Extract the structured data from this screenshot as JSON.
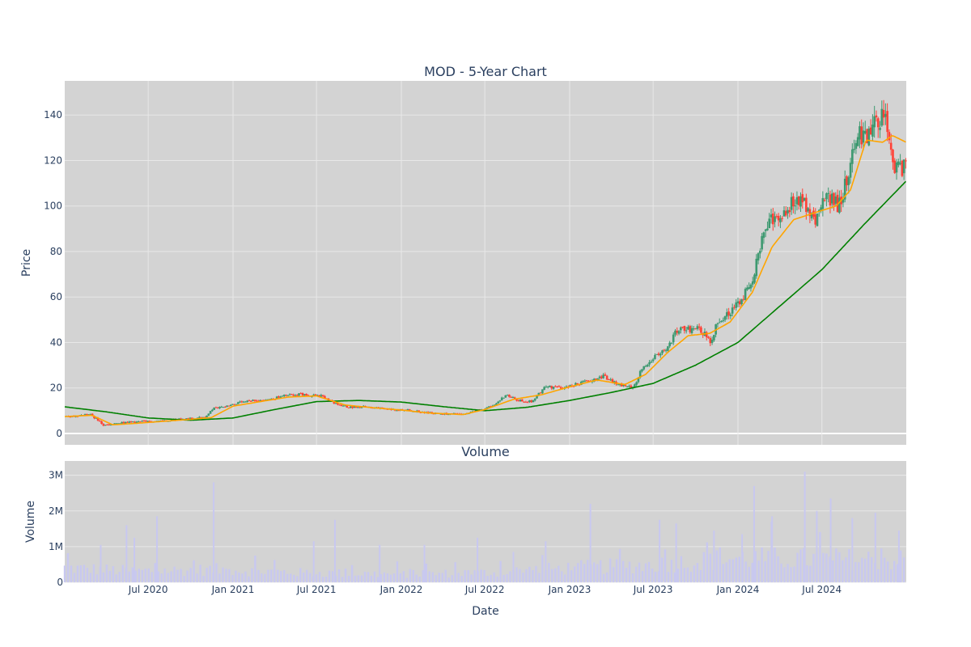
{
  "chart_data": [
    {
      "type": "candlestick",
      "title": "MOD - 5-Year Chart",
      "xlabel": "",
      "ylabel": "Price",
      "ylim": [
        -5,
        155
      ],
      "yticks": [
        0,
        20,
        40,
        60,
        80,
        100,
        120,
        140
      ],
      "xlim": [
        "2020-01-02",
        "2024-12-31"
      ],
      "background": "#d3d3d3",
      "grid": true,
      "colors": {
        "increasing": "#3d9970",
        "decreasing": "#ff4136",
        "ma_short": "#ffa500",
        "ma_long": "#008000"
      },
      "price_close": [
        [
          "2020-01-02",
          7.5
        ],
        [
          "2020-02-01",
          7.6
        ],
        [
          "2020-02-25",
          8.5
        ],
        [
          "2020-03-10",
          6.5
        ],
        [
          "2020-03-25",
          3.5
        ],
        [
          "2020-04-15",
          4.0
        ],
        [
          "2020-05-10",
          4.8
        ],
        [
          "2020-06-05",
          5.0
        ],
        [
          "2020-07-01",
          5.3
        ],
        [
          "2020-08-01",
          5.6
        ],
        [
          "2020-09-01",
          6.2
        ],
        [
          "2020-10-01",
          6.6
        ],
        [
          "2020-11-01",
          7.2
        ],
        [
          "2020-11-20",
          11.0
        ],
        [
          "2020-12-15",
          12.0
        ],
        [
          "2021-01-15",
          13.5
        ],
        [
          "2021-02-20",
          14.5
        ],
        [
          "2021-03-20",
          14.8
        ],
        [
          "2021-04-20",
          16.5
        ],
        [
          "2021-05-20",
          17.2
        ],
        [
          "2021-06-15",
          17.0
        ],
        [
          "2021-07-10",
          16.5
        ],
        [
          "2021-08-10",
          13.0
        ],
        [
          "2021-09-10",
          11.5
        ],
        [
          "2021-10-15",
          11.8
        ],
        [
          "2021-11-15",
          11.0
        ],
        [
          "2021-12-15",
          10.5
        ],
        [
          "2022-01-20",
          10.2
        ],
        [
          "2022-03-01",
          9.0
        ],
        [
          "2022-04-15",
          8.5
        ],
        [
          "2022-05-20",
          8.4
        ],
        [
          "2022-06-20",
          10.5
        ],
        [
          "2022-07-20",
          12.0
        ],
        [
          "2022-08-15",
          17.0
        ],
        [
          "2022-09-10",
          14.5
        ],
        [
          "2022-10-10",
          14.0
        ],
        [
          "2022-11-10",
          20.5
        ],
        [
          "2022-12-15",
          20.0
        ],
        [
          "2023-01-15",
          21.5
        ],
        [
          "2023-02-15",
          23.5
        ],
        [
          "2023-03-15",
          25.0
        ],
        [
          "2023-04-15",
          21.5
        ],
        [
          "2023-05-20",
          20.5
        ],
        [
          "2023-06-10",
          30.0
        ],
        [
          "2023-07-10",
          34.0
        ],
        [
          "2023-08-01",
          37.0
        ],
        [
          "2023-08-20",
          45.0
        ],
        [
          "2023-09-15",
          46.0
        ],
        [
          "2023-10-10",
          46.5
        ],
        [
          "2023-11-01",
          40.0
        ],
        [
          "2023-11-20",
          50.0
        ],
        [
          "2023-12-10",
          53.0
        ],
        [
          "2024-01-05",
          58.0
        ],
        [
          "2024-02-01",
          68.0
        ],
        [
          "2024-03-01",
          90.0
        ],
        [
          "2024-03-20",
          95.0
        ],
        [
          "2024-04-10",
          98.0
        ],
        [
          "2024-05-01",
          103.0
        ],
        [
          "2024-05-25",
          100.0
        ],
        [
          "2024-06-20",
          94.0
        ],
        [
          "2024-07-10",
          105.0
        ],
        [
          "2024-08-05",
          100.0
        ],
        [
          "2024-08-25",
          112.0
        ],
        [
          "2024-09-15",
          132.0
        ],
        [
          "2024-10-05",
          130.0
        ],
        [
          "2024-10-25",
          137.0
        ],
        [
          "2024-11-15",
          140.0
        ],
        [
          "2024-12-05",
          115.0
        ],
        [
          "2024-12-31",
          117.0
        ]
      ],
      "ma_short": [
        [
          "2020-01-02",
          7.4
        ],
        [
          "2020-03-01",
          8.0
        ],
        [
          "2020-04-15",
          3.8
        ],
        [
          "2020-06-01",
          4.4
        ],
        [
          "2020-08-01",
          5.3
        ],
        [
          "2020-10-01",
          6.2
        ],
        [
          "2020-11-15",
          7.0
        ],
        [
          "2021-01-01",
          12.0
        ],
        [
          "2021-03-01",
          14.0
        ],
        [
          "2021-05-01",
          16.0
        ],
        [
          "2021-07-01",
          16.5
        ],
        [
          "2021-09-01",
          12.5
        ],
        [
          "2021-11-01",
          11.3
        ],
        [
          "2022-01-01",
          10.3
        ],
        [
          "2022-03-01",
          9.0
        ],
        [
          "2022-05-15",
          8.3
        ],
        [
          "2022-07-01",
          10.5
        ],
        [
          "2022-09-01",
          15.0
        ],
        [
          "2022-11-01",
          17.0
        ],
        [
          "2023-01-01",
          20.5
        ],
        [
          "2023-03-01",
          23.5
        ],
        [
          "2023-05-01",
          21.5
        ],
        [
          "2023-06-15",
          26.0
        ],
        [
          "2023-08-01",
          35.5
        ],
        [
          "2023-09-15",
          43.0
        ],
        [
          "2023-11-01",
          44.0
        ],
        [
          "2023-12-15",
          49.0
        ],
        [
          "2024-02-01",
          62.0
        ],
        [
          "2024-03-15",
          82.0
        ],
        [
          "2024-05-01",
          94.0
        ],
        [
          "2024-06-15",
          97.0
        ],
        [
          "2024-08-01",
          100.0
        ],
        [
          "2024-09-01",
          107.0
        ],
        [
          "2024-10-05",
          129.0
        ],
        [
          "2024-11-10",
          128.0
        ],
        [
          "2024-12-01",
          131.0
        ],
        [
          "2024-12-31",
          128.0
        ]
      ],
      "ma_long": [
        [
          "2020-01-02",
          11.7
        ],
        [
          "2020-04-01",
          9.5
        ],
        [
          "2020-07-01",
          6.8
        ],
        [
          "2020-10-01",
          5.8
        ],
        [
          "2021-01-01",
          6.8
        ],
        [
          "2021-04-01",
          10.5
        ],
        [
          "2021-07-01",
          14.0
        ],
        [
          "2021-10-01",
          14.5
        ],
        [
          "2022-01-01",
          13.8
        ],
        [
          "2022-04-01",
          11.8
        ],
        [
          "2022-07-01",
          10.0
        ],
        [
          "2022-10-01",
          11.5
        ],
        [
          "2023-01-01",
          14.5
        ],
        [
          "2023-04-01",
          18.0
        ],
        [
          "2023-07-01",
          22.0
        ],
        [
          "2023-10-01",
          30.0
        ],
        [
          "2024-01-01",
          40.0
        ],
        [
          "2024-04-01",
          56.0
        ],
        [
          "2024-07-01",
          72.0
        ],
        [
          "2024-10-01",
          92.0
        ],
        [
          "2024-12-31",
          111.0
        ]
      ]
    },
    {
      "type": "bar",
      "title": "Volume",
      "xlabel": "Date",
      "ylabel": "Volume",
      "ylim": [
        0,
        3.4
      ],
      "yticks": [
        0,
        1,
        2,
        3
      ],
      "ytick_labels": [
        "0",
        "1M",
        "2M",
        "3M"
      ],
      "xtick_labels": [
        "Jul 2020",
        "Jan 2021",
        "Jul 2021",
        "Jan 2022",
        "Jul 2022",
        "Jan 2023",
        "Jul 2023",
        "Jan 2024",
        "Jul 2024"
      ],
      "xtick_dates": [
        "2020-07-01",
        "2021-01-01",
        "2021-07-01",
        "2022-01-01",
        "2022-07-01",
        "2023-01-01",
        "2023-07-01",
        "2024-01-01",
        "2024-07-01"
      ],
      "bar_color": "#c8c8f0",
      "baseline_levels_millions": [
        [
          "2020-01-02",
          0.45
        ],
        [
          "2020-06-01",
          0.35
        ],
        [
          "2020-12-01",
          0.4
        ],
        [
          "2021-06-01",
          0.3
        ],
        [
          "2022-01-01",
          0.25
        ],
        [
          "2022-07-01",
          0.3
        ],
        [
          "2023-01-01",
          0.45
        ],
        [
          "2023-07-01",
          0.55
        ],
        [
          "2024-01-01",
          0.75
        ],
        [
          "2024-12-31",
          0.7
        ]
      ],
      "spikes_millions": [
        [
          "2020-03-20",
          1.05
        ],
        [
          "2020-05-15",
          1.6
        ],
        [
          "2020-06-01",
          1.25
        ],
        [
          "2020-07-20",
          1.85
        ],
        [
          "2020-11-20",
          2.8
        ],
        [
          "2021-06-25",
          1.15
        ],
        [
          "2021-08-10",
          1.75
        ],
        [
          "2021-11-15",
          1.05
        ],
        [
          "2022-02-20",
          1.05
        ],
        [
          "2022-06-15",
          1.25
        ],
        [
          "2022-09-01",
          0.85
        ],
        [
          "2022-11-10",
          1.15
        ],
        [
          "2023-02-15",
          2.2
        ],
        [
          "2023-07-15",
          1.75
        ],
        [
          "2023-08-20",
          1.65
        ],
        [
          "2023-11-10",
          1.45
        ],
        [
          "2024-01-10",
          1.35
        ],
        [
          "2024-02-05",
          2.7
        ],
        [
          "2024-03-15",
          1.85
        ],
        [
          "2024-05-25",
          3.1
        ],
        [
          "2024-06-20",
          2.0
        ],
        [
          "2024-07-20",
          2.35
        ],
        [
          "2024-09-05",
          1.8
        ],
        [
          "2024-10-25",
          1.95
        ],
        [
          "2024-12-15",
          1.45
        ]
      ]
    }
  ]
}
